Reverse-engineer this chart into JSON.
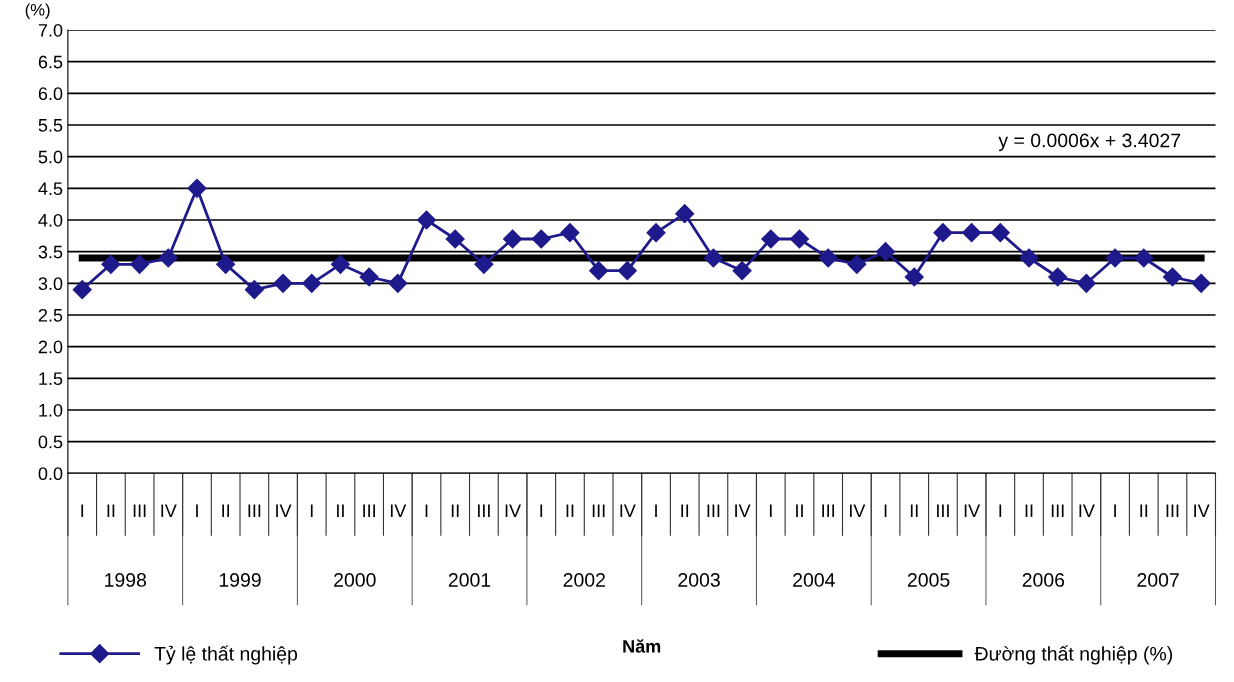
{
  "chart_data": {
    "type": "line",
    "ylabel": "(%)",
    "categories": [
      "I",
      "II",
      "III",
      "IV",
      "I",
      "II",
      "III",
      "IV",
      "I",
      "II",
      "III",
      "IV",
      "I",
      "II",
      "III",
      "IV",
      "I",
      "II",
      "III",
      "IV",
      "I",
      "II",
      "III",
      "IV",
      "I",
      "II",
      "III",
      "IV",
      "I",
      "II",
      "III",
      "IV",
      "I",
      "II",
      "III",
      "IV",
      "I",
      "II",
      "III",
      "IV"
    ],
    "series": [
      {
        "name": "Tỷ lệ thất nghiệp",
        "color": "#1f1a8c",
        "marker": "diamond",
        "values": [
          2.9,
          3.3,
          3.3,
          3.4,
          4.5,
          3.3,
          2.9,
          3.0,
          3.0,
          3.3,
          3.1,
          3.0,
          4.0,
          3.7,
          3.3,
          3.7,
          3.7,
          3.8,
          3.2,
          3.2,
          3.8,
          4.1,
          3.4,
          3.2,
          3.7,
          3.7,
          3.4,
          3.3,
          3.5,
          3.1,
          3.8,
          3.8,
          3.8,
          3.4,
          3.1,
          3.0,
          3.4,
          3.4,
          3.1,
          3.0
        ]
      },
      {
        "name": "Đường thất nghiệp (%)",
        "color": "#000000",
        "marker": "none",
        "values": [
          3.4,
          3.4,
          3.4,
          3.4,
          3.4,
          3.4,
          3.4,
          3.4,
          3.4,
          3.4,
          3.4,
          3.4,
          3.4,
          3.4,
          3.4,
          3.4,
          3.4,
          3.4,
          3.4,
          3.4,
          3.4,
          3.4,
          3.4,
          3.4,
          3.4,
          3.4,
          3.4,
          3.4,
          3.4,
          3.4,
          3.4,
          3.4,
          3.4,
          3.4,
          3.4,
          3.4,
          3.4,
          3.4,
          3.4,
          3.4
        ]
      }
    ],
    "annotations": [
      "y = 0.0006x + 3.4027",
      "1998",
      "1999",
      "2000",
      "2001",
      "2002",
      "2003",
      "2004",
      "2005",
      "2006",
      "2007",
      "Năm"
    ],
    "ylim": [
      0,
      7
    ],
    "yticks": [
      {
        "value": 0,
        "label": "0.0"
      },
      0.5,
      {
        "value": 1,
        "label": "1.0"
      },
      1.5,
      {
        "value": 2,
        "label": "2.0"
      },
      2.5,
      {
        "value": 3,
        "label": "3.0"
      },
      3.5,
      {
        "value": 4,
        "label": "4.0"
      },
      4.5,
      {
        "value": 5,
        "label": "5.0"
      },
      5.5,
      {
        "value": 6,
        "label": "6.0"
      },
      6.5,
      {
        "value": 7,
        "label": "7.0"
      }
    ],
    "grid": "y",
    "legend": "bottom",
    "line_style": "solid"
  }
}
